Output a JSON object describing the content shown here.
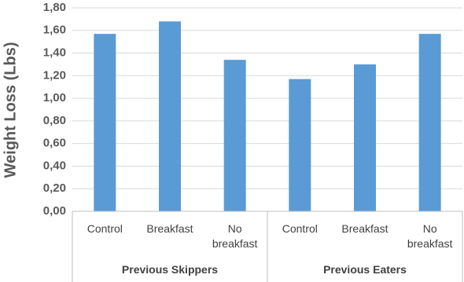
{
  "chart_data": {
    "type": "bar",
    "ylabel": "Weight Loss (Lbs)",
    "color": "#5b9bd5",
    "grid": true,
    "groups": [
      {
        "name": "Previous Skippers",
        "categories": [
          "Control",
          "Breakfast",
          "No breakfast"
        ],
        "values": [
          1.57,
          1.68,
          1.34
        ]
      },
      {
        "name": "Previous Eaters",
        "categories": [
          "Control",
          "Breakfast",
          "No breakfast"
        ],
        "values": [
          1.17,
          1.3,
          1.57
        ]
      }
    ],
    "ylim": [
      0,
      1.8
    ],
    "yticks": [
      {
        "value": 0,
        "label": "0,00"
      },
      {
        "value": 0.2,
        "label": "0,20"
      },
      {
        "value": 0.4,
        "label": "0,40"
      },
      {
        "value": 0.6,
        "label": "0,60"
      },
      {
        "value": 0.8,
        "label": "0,80"
      },
      {
        "value": 1.0,
        "label": "1,00"
      },
      {
        "value": 1.2,
        "label": "1,20"
      },
      {
        "value": 1.4,
        "label": "1,40"
      },
      {
        "value": 1.6,
        "label": "1,60"
      },
      {
        "value": 1.8,
        "label": "1,80"
      }
    ]
  }
}
